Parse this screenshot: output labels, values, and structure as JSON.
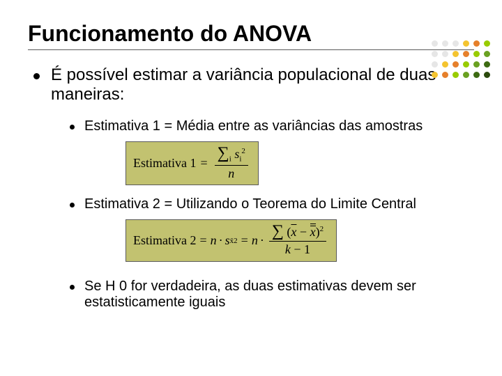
{
  "title": "Funcionamento do ANOVA",
  "mainBullet": "É possível estimar a variância populacional de duas maneiras:",
  "sub1": "Estimativa 1 = Média entre as variâncias das amostras",
  "sub2": "Estimativa 2 = Utilizando o Teorema do Limite Central",
  "sub3": "Se H 0 for verdadeira, as duas estimativas devem ser estatisticamente iguais",
  "formula1": {
    "lhs": "Estimativa 1",
    "eq": "=",
    "num_sigma": "∑",
    "num_sub": "i",
    "num_var": "s",
    "num_var_sub": "i",
    "num_var_sup": "2",
    "den": "n"
  },
  "formula2": {
    "lhs": "Estimativa 2",
    "eq": "=",
    "mid_n": "n",
    "mid_dot": "·",
    "mid_s": "s",
    "mid_s_sub": "x̄",
    "mid_s_sup": "2",
    "mid_eq2": "=",
    "mid_n2": "n",
    "mid_dot2": "·",
    "num_sigma": "∑",
    "num_open": "(",
    "num_x": "x",
    "num_minus": " − ",
    "num_xx": "x",
    "num_close": ")",
    "num_sup": "2",
    "den_k": "k",
    "den_minus": " − 1"
  },
  "dotColors": [
    "#e6e6e6",
    "#e6e6e6",
    "#e6e6e6",
    "#f4c430",
    "#e6802b",
    "#99cc00",
    "#e6e6e6",
    "#e6e6e6",
    "#f4c430",
    "#e6802b",
    "#99cc00",
    "#6aa121",
    "#e6e6e6",
    "#f4c430",
    "#e6802b",
    "#99cc00",
    "#6aa121",
    "#3d6b12",
    "#f4c430",
    "#e6802b",
    "#99cc00",
    "#6aa121",
    "#3d6b12",
    "#2b4a0d"
  ]
}
